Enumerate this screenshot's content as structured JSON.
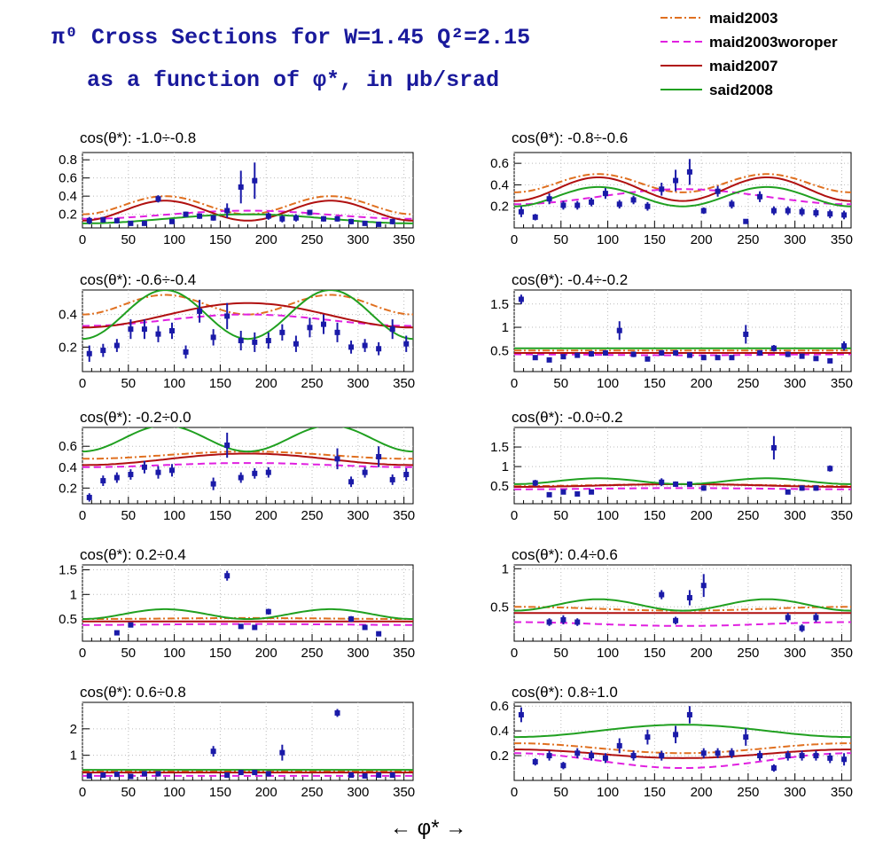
{
  "title_line1": "π⁰ Cross Sections for W=1.45  Q²=2.15",
  "title_line2": "as a function of φ*, in μb/srad",
  "x_axis_label": "←     φ*     →",
  "chart_data": {
    "type": "scatter",
    "x_ticks": [
      0,
      50,
      100,
      150,
      200,
      250,
      300,
      350
    ],
    "legend": [
      {
        "name": "maid2003",
        "color": "#e07020",
        "style": "dashdot"
      },
      {
        "name": "maid2003woroper",
        "color": "#e020e0",
        "style": "dashed"
      },
      {
        "name": "maid2007",
        "color": "#b01010",
        "style": "solid"
      },
      {
        "name": "said2008",
        "color": "#20a020",
        "style": "solid"
      }
    ],
    "panels": [
      {
        "title": "cos(θ*): -1.0÷-0.8",
        "ylim": [
          0.05,
          0.88
        ],
        "yticks": [
          0.2,
          0.4,
          0.6,
          0.8
        ],
        "ytick_labels": [
          "0.2",
          "0.4",
          "0.6",
          "0.8"
        ],
        "x": [
          7.5,
          22.5,
          37.5,
          52.5,
          67.5,
          82.5,
          97.5,
          112.5,
          127.5,
          142.5,
          157.5,
          172.5,
          187.5,
          202.5,
          217.5,
          232.5,
          247.5,
          262.5,
          277.5,
          292.5,
          307.5,
          322.5,
          337.5
        ],
        "y": [
          0.13,
          0.14,
          0.13,
          0.1,
          0.1,
          0.37,
          0.12,
          0.2,
          0.18,
          0.16,
          0.24,
          0.5,
          0.57,
          0.18,
          0.15,
          0.16,
          0.22,
          0.15,
          0.15,
          0.12,
          0.1,
          0.09,
          0.12
        ],
        "err": [
          0.04,
          0.03,
          0.03,
          0.02,
          0.02,
          0.04,
          0.02,
          0.03,
          0.03,
          0.03,
          0.08,
          0.18,
          0.2,
          0.04,
          0.04,
          0.04,
          0.03,
          0.03,
          0.03,
          0.03,
          0.02,
          0.02,
          0.03
        ],
        "curves": {
          "maid2003": [
            0.2,
            0.2,
            0.4
          ],
          "maid2003woroper": [
            0.15,
            0.12,
            0.24
          ],
          "maid2007": [
            0.13,
            0.22,
            0.35
          ],
          "said2008": [
            0.1,
            0.1,
            0.2
          ]
        }
      },
      {
        "title": "cos(θ*): -0.8÷-0.6",
        "ylim": [
          0.0,
          0.7
        ],
        "yticks": [
          0.2,
          0.4,
          0.6
        ],
        "ytick_labels": [
          "0.2",
          "0.4",
          "0.6"
        ],
        "x": [
          7.5,
          22.5,
          37.5,
          52.5,
          67.5,
          82.5,
          97.5,
          112.5,
          127.5,
          142.5,
          157.5,
          172.5,
          187.5,
          202.5,
          217.5,
          232.5,
          247.5,
          262.5,
          277.5,
          292.5,
          307.5,
          322.5,
          337.5,
          352.5
        ],
        "y": [
          0.15,
          0.1,
          0.27,
          0.21,
          0.21,
          0.24,
          0.32,
          0.22,
          0.26,
          0.2,
          0.36,
          0.44,
          0.52,
          0.16,
          0.34,
          0.22,
          0.06,
          0.29,
          0.16,
          0.16,
          0.15,
          0.14,
          0.13,
          0.12
        ],
        "err": [
          0.05,
          0.03,
          0.05,
          0.04,
          0.04,
          0.04,
          0.05,
          0.04,
          0.04,
          0.04,
          0.06,
          0.1,
          0.12,
          0.03,
          0.05,
          0.04,
          0.02,
          0.05,
          0.04,
          0.04,
          0.04,
          0.04,
          0.04,
          0.04
        ],
        "curves": {
          "maid2003": [
            0.33,
            0.33,
            0.5
          ],
          "maid2003woroper": [
            0.22,
            0.12,
            0.36
          ],
          "maid2007": [
            0.25,
            0.25,
            0.47
          ],
          "said2008": [
            0.2,
            0.18,
            0.38
          ]
        }
      },
      {
        "title": "cos(θ*): -0.6÷-0.4",
        "ylim": [
          0.05,
          0.55
        ],
        "yticks": [
          0.2,
          0.4
        ],
        "ytick_labels": [
          "0.2",
          "0.4"
        ],
        "x": [
          7.5,
          22.5,
          37.5,
          52.5,
          67.5,
          82.5,
          97.5,
          112.5,
          127.5,
          142.5,
          157.5,
          172.5,
          187.5,
          202.5,
          217.5,
          232.5,
          247.5,
          262.5,
          277.5,
          292.5,
          307.5,
          322.5,
          337.5,
          352.5
        ],
        "y": [
          0.16,
          0.18,
          0.21,
          0.31,
          0.31,
          0.28,
          0.3,
          0.17,
          0.42,
          0.26,
          0.39,
          0.24,
          0.23,
          0.24,
          0.29,
          0.22,
          0.32,
          0.34,
          0.29,
          0.2,
          0.21,
          0.19,
          0.31,
          0.22
        ],
        "err": [
          0.05,
          0.04,
          0.04,
          0.06,
          0.06,
          0.05,
          0.05,
          0.04,
          0.07,
          0.05,
          0.08,
          0.06,
          0.06,
          0.05,
          0.05,
          0.05,
          0.06,
          0.06,
          0.06,
          0.04,
          0.04,
          0.04,
          0.06,
          0.05
        ],
        "curves": {
          "maid2003": [
            0.4,
            0.4,
            0.52
          ],
          "maid2003woroper": [
            0.33,
            0.1,
            0.4
          ],
          "maid2007": [
            0.32,
            0.15,
            0.47
          ],
          "said2008": [
            0.25,
            0.3,
            0.55
          ]
        }
      },
      {
        "title": "cos(θ*): -0.4÷-0.2",
        "ylim": [
          0.05,
          1.8
        ],
        "yticks": [
          0.5,
          1.0,
          1.5
        ],
        "ytick_labels": [
          "0.5",
          "1",
          "1.5"
        ],
        "x": [
          7.5,
          22.5,
          37.5,
          52.5,
          67.5,
          82.5,
          97.5,
          112.5,
          127.5,
          142.5,
          157.5,
          172.5,
          187.5,
          202.5,
          217.5,
          232.5,
          247.5,
          262.5,
          277.5,
          292.5,
          307.5,
          322.5,
          337.5,
          352.5
        ],
        "y": [
          1.6,
          0.35,
          0.3,
          0.37,
          0.4,
          0.43,
          0.45,
          0.93,
          0.42,
          0.32,
          0.45,
          0.45,
          0.4,
          0.35,
          0.35,
          0.35,
          0.85,
          0.45,
          0.55,
          0.42,
          0.38,
          0.33,
          0.28,
          0.6
        ],
        "err": [
          0.1,
          0.05,
          0.05,
          0.05,
          0.05,
          0.06,
          0.06,
          0.2,
          0.06,
          0.05,
          0.06,
          0.06,
          0.05,
          0.05,
          0.05,
          0.05,
          0.2,
          0.06,
          0.07,
          0.06,
          0.05,
          0.05,
          0.05,
          0.1
        ],
        "curves": {
          "maid2003": [
            0.5,
            0.05,
            0.5
          ],
          "maid2003woroper": [
            0.42,
            0.05,
            0.4
          ],
          "maid2007": [
            0.45,
            0.05,
            0.45
          ],
          "said2008": [
            0.55,
            0.2,
            0.55
          ]
        }
      },
      {
        "title": "cos(θ*): -0.2÷0.0",
        "ylim": [
          0.05,
          0.78
        ],
        "yticks": [
          0.2,
          0.4,
          0.6
        ],
        "ytick_labels": [
          "0.2",
          "0.4",
          "0.6"
        ],
        "x": [
          7.5,
          22.5,
          37.5,
          52.5,
          67.5,
          82.5,
          97.5,
          142.5,
          157.5,
          172.5,
          187.5,
          202.5,
          277.5,
          292.5,
          307.5,
          322.5,
          337.5,
          352.5
        ],
        "y": [
          0.11,
          0.27,
          0.3,
          0.33,
          0.4,
          0.35,
          0.37,
          0.24,
          0.61,
          0.3,
          0.34,
          0.35,
          0.48,
          0.26,
          0.35,
          0.5,
          0.28,
          0.33
        ],
        "err": [
          0.04,
          0.05,
          0.05,
          0.05,
          0.06,
          0.06,
          0.06,
          0.06,
          0.12,
          0.05,
          0.05,
          0.05,
          0.1,
          0.05,
          0.05,
          0.1,
          0.05,
          0.06
        ],
        "curves": {
          "maid2003": [
            0.48,
            0.05,
            0.55
          ],
          "maid2003woroper": [
            0.4,
            0.05,
            0.44
          ],
          "maid2007": [
            0.42,
            0.1,
            0.53
          ],
          "said2008": [
            0.55,
            0.25,
            0.8
          ]
        }
      },
      {
        "title": "cos(θ*): -0.0÷0.2",
        "ylim": [
          0.05,
          2.0
        ],
        "yticks": [
          0.5,
          1.0,
          1.5
        ],
        "ytick_labels": [
          "0.5",
          "1",
          "1.5"
        ],
        "x": [
          22.5,
          37.5,
          52.5,
          67.5,
          82.5,
          157.5,
          172.5,
          187.5,
          202.5,
          277.5,
          292.5,
          307.5,
          322.5,
          337.5
        ],
        "y": [
          0.58,
          0.28,
          0.35,
          0.3,
          0.35,
          0.6,
          0.55,
          0.55,
          0.45,
          1.48,
          0.35,
          0.45,
          0.45,
          0.95
        ],
        "err": [
          0.08,
          0.05,
          0.06,
          0.05,
          0.06,
          0.1,
          0.07,
          0.07,
          0.07,
          0.3,
          0.06,
          0.07,
          0.07,
          0.08
        ],
        "curves": {
          "maid2003": [
            0.5,
            0.05,
            0.55
          ],
          "maid2003woroper": [
            0.42,
            0.05,
            0.45
          ],
          "maid2007": [
            0.48,
            0.05,
            0.55
          ],
          "said2008": [
            0.55,
            0.2,
            0.7
          ]
        }
      },
      {
        "title": "cos(θ*): 0.2÷0.4",
        "ylim": [
          0.05,
          1.6
        ],
        "yticks": [
          0.5,
          1.0,
          1.5
        ],
        "ytick_labels": [
          "0.5",
          "1",
          "1.5"
        ],
        "x": [
          37.5,
          52.5,
          157.5,
          172.5,
          187.5,
          202.5,
          292.5,
          307.5,
          322.5
        ],
        "y": [
          0.22,
          0.38,
          1.38,
          0.35,
          0.33,
          0.65,
          0.5,
          0.33,
          0.2
        ],
        "err": [
          0.04,
          0.05,
          0.1,
          0.05,
          0.05,
          0.06,
          0.06,
          0.05,
          0.04
        ],
        "curves": {
          "maid2003": [
            0.5,
            0.05,
            0.52
          ],
          "maid2003woroper": [
            0.38,
            0.05,
            0.4
          ],
          "maid2007": [
            0.45,
            0.05,
            0.45
          ],
          "said2008": [
            0.5,
            0.2,
            0.7
          ]
        }
      },
      {
        "title": "cos(θ*): 0.4÷0.6",
        "ylim": [
          0.05,
          1.05
        ],
        "yticks": [
          0.5,
          1.0
        ],
        "ytick_labels": [
          "0.5",
          "1"
        ],
        "x": [
          37.5,
          52.5,
          67.5,
          157.5,
          172.5,
          187.5,
          202.5,
          292.5,
          307.5,
          322.5
        ],
        "y": [
          0.3,
          0.33,
          0.3,
          0.66,
          0.32,
          0.62,
          0.78,
          0.36,
          0.22,
          0.36
        ],
        "err": [
          0.05,
          0.06,
          0.05,
          0.06,
          0.05,
          0.1,
          0.15,
          0.06,
          0.05,
          0.06
        ],
        "curves": {
          "maid2003": [
            0.5,
            0.05,
            0.45
          ],
          "maid2003woroper": [
            0.3,
            0.05,
            0.25
          ],
          "maid2007": [
            0.42,
            0.05,
            0.42
          ],
          "said2008": [
            0.45,
            0.2,
            0.6
          ]
        }
      },
      {
        "title": "cos(θ*): 0.6÷0.8",
        "ylim": [
          0.05,
          3.0
        ],
        "yticks": [
          1,
          2
        ],
        "ytick_labels": [
          "1",
          "2"
        ],
        "x": [
          7.5,
          22.5,
          37.5,
          52.5,
          67.5,
          82.5,
          142.5,
          157.5,
          172.5,
          187.5,
          202.5,
          217.5,
          277.5,
          292.5,
          307.5,
          322.5,
          337.5
        ],
        "y": [
          0.22,
          0.25,
          0.28,
          0.2,
          0.3,
          0.3,
          1.15,
          0.25,
          0.35,
          0.35,
          0.3,
          1.1,
          2.6,
          0.25,
          0.22,
          0.25,
          0.25
        ],
        "err": [
          0.04,
          0.04,
          0.05,
          0.04,
          0.05,
          0.05,
          0.2,
          0.04,
          0.05,
          0.05,
          0.05,
          0.3,
          0.15,
          0.04,
          0.04,
          0.04,
          0.04
        ],
        "curves": {
          "maid2003": [
            0.4,
            0.05,
            0.4
          ],
          "maid2003woroper": [
            0.22,
            0.05,
            0.22
          ],
          "maid2007": [
            0.35,
            0.05,
            0.35
          ],
          "said2008": [
            0.45,
            0.03,
            0.45
          ]
        }
      },
      {
        "title": "cos(θ*): 0.8÷1.0",
        "ylim": [
          0.0,
          0.63
        ],
        "yticks": [
          0.2,
          0.4,
          0.6
        ],
        "ytick_labels": [
          "0.2",
          "0.4",
          "0.6"
        ],
        "x": [
          7.5,
          22.5,
          37.5,
          52.5,
          67.5,
          82.5,
          97.5,
          112.5,
          127.5,
          142.5,
          157.5,
          172.5,
          187.5,
          202.5,
          217.5,
          232.5,
          247.5,
          262.5,
          277.5,
          292.5,
          307.5,
          322.5,
          337.5,
          352.5
        ],
        "y": [
          0.53,
          0.15,
          0.2,
          0.12,
          0.22,
          0.2,
          0.18,
          0.28,
          0.2,
          0.35,
          0.2,
          0.37,
          0.53,
          0.22,
          0.22,
          0.22,
          0.35,
          0.2,
          0.1,
          0.2,
          0.2,
          0.2,
          0.18,
          0.17
        ],
        "err": [
          0.06,
          0.03,
          0.04,
          0.03,
          0.04,
          0.04,
          0.04,
          0.06,
          0.04,
          0.06,
          0.04,
          0.07,
          0.07,
          0.04,
          0.04,
          0.04,
          0.07,
          0.04,
          0.03,
          0.04,
          0.04,
          0.04,
          0.04,
          0.05
        ],
        "curves": {
          "maid2003": [
            0.3,
            0.05,
            0.22
          ],
          "maid2003woroper": [
            0.22,
            0.05,
            0.1
          ],
          "maid2007": [
            0.25,
            0.03,
            0.18
          ],
          "said2008": [
            0.35,
            0.03,
            0.45
          ]
        }
      }
    ]
  },
  "colors": {
    "data": "#1a1aa8",
    "title": "#1a1a9c"
  }
}
